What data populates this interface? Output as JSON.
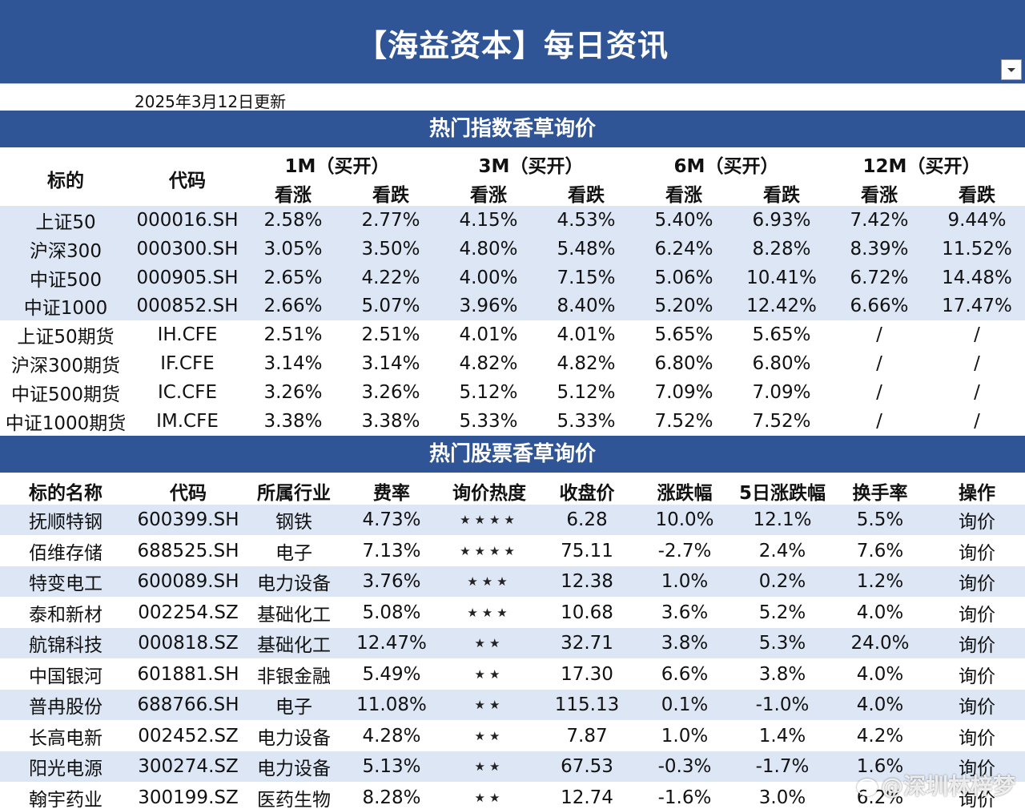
{
  "header": {
    "title": "【海益资本】每日资讯"
  },
  "update_text": "2025年3月12日更新",
  "index_section": {
    "title": "热门指数香草询价",
    "col_target": "标的",
    "col_code": "代码",
    "periods": [
      "1M（买开）",
      "3M（买开）",
      "6M（买开）",
      "12M（买开）"
    ],
    "call": "看涨",
    "put": "看跌",
    "rows": [
      {
        "name": "上证50",
        "code": "000016.SH",
        "v": [
          "2.58%",
          "2.77%",
          "4.15%",
          "4.53%",
          "5.40%",
          "6.93%",
          "7.42%",
          "9.44%"
        ]
      },
      {
        "name": "沪深300",
        "code": "000300.SH",
        "v": [
          "3.05%",
          "3.50%",
          "4.80%",
          "5.48%",
          "6.24%",
          "8.28%",
          "8.39%",
          "11.52%"
        ]
      },
      {
        "name": "中证500",
        "code": "000905.SH",
        "v": [
          "2.65%",
          "4.22%",
          "4.00%",
          "7.15%",
          "5.06%",
          "10.41%",
          "6.72%",
          "14.48%"
        ]
      },
      {
        "name": "中证1000",
        "code": "000852.SH",
        "v": [
          "2.66%",
          "5.07%",
          "3.96%",
          "8.40%",
          "5.20%",
          "12.42%",
          "6.66%",
          "17.47%"
        ]
      },
      {
        "name": "上证50期货",
        "code": "IH.CFE",
        "v": [
          "2.51%",
          "2.51%",
          "4.01%",
          "4.01%",
          "5.65%",
          "5.65%",
          "/",
          "/"
        ]
      },
      {
        "name": "沪深300期货",
        "code": "IF.CFE",
        "v": [
          "3.14%",
          "3.14%",
          "4.82%",
          "4.82%",
          "6.80%",
          "6.80%",
          "/",
          "/"
        ]
      },
      {
        "name": "中证500期货",
        "code": "IC.CFE",
        "v": [
          "3.26%",
          "3.26%",
          "5.12%",
          "5.12%",
          "7.09%",
          "7.09%",
          "/",
          "/"
        ]
      },
      {
        "name": "中证1000期货",
        "code": "IM.CFE",
        "v": [
          "3.38%",
          "3.38%",
          "5.33%",
          "5.33%",
          "7.52%",
          "7.52%",
          "/",
          "/"
        ]
      }
    ]
  },
  "stock_section": {
    "title": "热门股票香草询价",
    "headers": [
      "标的名称",
      "代码",
      "所属行业",
      "费率",
      "询价热度",
      "收盘价",
      "涨跌幅",
      "5日涨跌幅",
      "换手率",
      "操作"
    ],
    "rows": [
      {
        "name": "抚顺特钢",
        "code": "600399.SH",
        "industry": "钢铁",
        "fee": "4.73%",
        "heat": "★★★★",
        "close": "6.28",
        "chg": "10.0%",
        "chg5": "12.1%",
        "turnover": "5.5%",
        "action": "询价"
      },
      {
        "name": "佰维存储",
        "code": "688525.SH",
        "industry": "电子",
        "fee": "7.13%",
        "heat": "★★★★",
        "close": "75.11",
        "chg": "-2.7%",
        "chg5": "2.4%",
        "turnover": "7.6%",
        "action": "询价"
      },
      {
        "name": "特变电工",
        "code": "600089.SH",
        "industry": "电力设备",
        "fee": "3.76%",
        "heat": "★★★",
        "close": "12.38",
        "chg": "1.0%",
        "chg5": "0.2%",
        "turnover": "1.2%",
        "action": "询价"
      },
      {
        "name": "泰和新材",
        "code": "002254.SZ",
        "industry": "基础化工",
        "fee": "5.08%",
        "heat": "★★★",
        "close": "10.68",
        "chg": "3.6%",
        "chg5": "5.2%",
        "turnover": "4.0%",
        "action": "询价"
      },
      {
        "name": "航锦科技",
        "code": "000818.SZ",
        "industry": "基础化工",
        "fee": "12.47%",
        "heat": "★★",
        "close": "32.71",
        "chg": "3.8%",
        "chg5": "5.3%",
        "turnover": "24.0%",
        "action": "询价"
      },
      {
        "name": "中国银河",
        "code": "601881.SH",
        "industry": "非银金融",
        "fee": "5.49%",
        "heat": "★★",
        "close": "17.30",
        "chg": "6.6%",
        "chg5": "3.8%",
        "turnover": "4.0%",
        "action": "询价"
      },
      {
        "name": "普冉股份",
        "code": "688766.SH",
        "industry": "电子",
        "fee": "11.08%",
        "heat": "★★",
        "close": "115.13",
        "chg": "0.1%",
        "chg5": "-1.0%",
        "turnover": "4.0%",
        "action": "询价"
      },
      {
        "name": "长高电新",
        "code": "002452.SZ",
        "industry": "电力设备",
        "fee": "4.28%",
        "heat": "★★",
        "close": "7.87",
        "chg": "1.0%",
        "chg5": "1.4%",
        "turnover": "4.2%",
        "action": "询价"
      },
      {
        "name": "阳光电源",
        "code": "300274.SZ",
        "industry": "电力设备",
        "fee": "5.13%",
        "heat": "★★",
        "close": "67.53",
        "chg": "-0.3%",
        "chg5": "-1.7%",
        "turnover": "1.6%",
        "action": "询价"
      },
      {
        "name": "翰宇药业",
        "code": "300199.SZ",
        "industry": "医药生物",
        "fee": "8.28%",
        "heat": "★★",
        "close": "12.74",
        "chg": "-1.6%",
        "chg5": "3.0%",
        "turnover": "6.2%",
        "action": "询价"
      }
    ]
  },
  "watermark": "@深圳林梓梦"
}
